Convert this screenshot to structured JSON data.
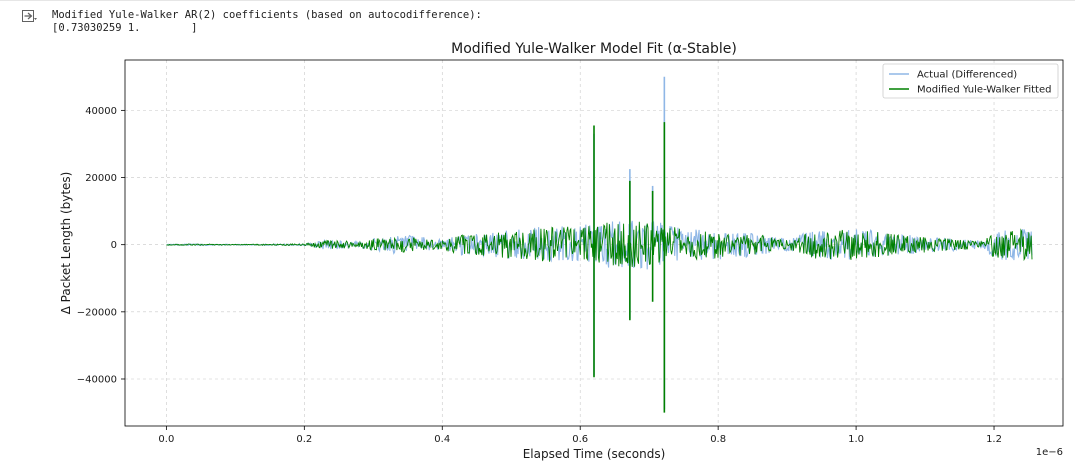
{
  "output": {
    "line1": "Modified Yule-Walker AR(2) coefficients (based on autocodifference):",
    "line2": "[0.73030259 1.        ]"
  },
  "chart_data": {
    "type": "line",
    "title": "Modified Yule-Walker Model Fit (α-Stable)",
    "xlabel": "Elapsed Time (seconds)",
    "ylabel": "Δ Packet Length (bytes)",
    "x_offset_label": "1e−6",
    "xlim": [
      -0.06,
      1.3
    ],
    "ylim": [
      -54000,
      55000
    ],
    "xticks": [
      0.0,
      0.2,
      0.4,
      0.6,
      0.8,
      1.0,
      1.2
    ],
    "xtick_labels": [
      "0.0",
      "0.2",
      "0.4",
      "0.6",
      "0.8",
      "1.0",
      "1.2"
    ],
    "yticks": [
      -40000,
      -20000,
      0,
      20000,
      40000
    ],
    "ytick_labels": [
      "−40000",
      "−20000",
      "0",
      "20000",
      "40000"
    ],
    "grid": true,
    "legend_position": "top-right",
    "series": [
      {
        "name": "Actual (Differenced)",
        "color": "#8fb7e6",
        "envelope": [
          {
            "x": 0.0,
            "amp": 150
          },
          {
            "x": 0.05,
            "amp": 250
          },
          {
            "x": 0.1,
            "amp": 100
          },
          {
            "x": 0.15,
            "amp": 200
          },
          {
            "x": 0.2,
            "amp": 300
          },
          {
            "x": 0.23,
            "amp": 1500
          },
          {
            "x": 0.26,
            "amp": 1200
          },
          {
            "x": 0.28,
            "amp": 800
          },
          {
            "x": 0.31,
            "amp": 2500
          },
          {
            "x": 0.35,
            "amp": 2800
          },
          {
            "x": 0.4,
            "amp": 1500
          },
          {
            "x": 0.42,
            "amp": 3000
          },
          {
            "x": 0.5,
            "amp": 4500
          },
          {
            "x": 0.55,
            "amp": 5500
          },
          {
            "x": 0.6,
            "amp": 6000
          },
          {
            "x": 0.65,
            "amp": 7500
          },
          {
            "x": 0.7,
            "amp": 7500
          },
          {
            "x": 0.75,
            "amp": 5000
          },
          {
            "x": 0.8,
            "amp": 4500
          },
          {
            "x": 0.85,
            "amp": 3500
          },
          {
            "x": 0.9,
            "amp": 1800
          },
          {
            "x": 0.94,
            "amp": 4500
          },
          {
            "x": 1.0,
            "amp": 5000
          },
          {
            "x": 1.05,
            "amp": 3500
          },
          {
            "x": 1.1,
            "amp": 2500
          },
          {
            "x": 1.18,
            "amp": 1200
          },
          {
            "x": 1.2,
            "amp": 4500
          },
          {
            "x": 1.255,
            "amp": 5000
          }
        ],
        "spikes": [
          {
            "x": 0.62,
            "y": 33000
          },
          {
            "x": 0.672,
            "y": 22500
          },
          {
            "x": 0.705,
            "y": 17500
          },
          {
            "x": 0.722,
            "y": 50000
          },
          {
            "x": 0.62,
            "y": -39000
          },
          {
            "x": 0.672,
            "y": -22000
          },
          {
            "x": 0.722,
            "y": -49000
          }
        ]
      },
      {
        "name": "Modified Yule-Walker Fitted",
        "color": "#008000",
        "envelope": [
          {
            "x": 0.0,
            "amp": 150
          },
          {
            "x": 0.05,
            "amp": 250
          },
          {
            "x": 0.1,
            "amp": 100
          },
          {
            "x": 0.15,
            "amp": 200
          },
          {
            "x": 0.2,
            "amp": 300
          },
          {
            "x": 0.23,
            "amp": 1500
          },
          {
            "x": 0.26,
            "amp": 1200
          },
          {
            "x": 0.28,
            "amp": 800
          },
          {
            "x": 0.31,
            "amp": 2500
          },
          {
            "x": 0.35,
            "amp": 2800
          },
          {
            "x": 0.4,
            "amp": 1500
          },
          {
            "x": 0.42,
            "amp": 3000
          },
          {
            "x": 0.5,
            "amp": 4500
          },
          {
            "x": 0.55,
            "amp": 5500
          },
          {
            "x": 0.6,
            "amp": 6000
          },
          {
            "x": 0.65,
            "amp": 7500
          },
          {
            "x": 0.7,
            "amp": 7500
          },
          {
            "x": 0.75,
            "amp": 5000
          },
          {
            "x": 0.8,
            "amp": 4500
          },
          {
            "x": 0.85,
            "amp": 3500
          },
          {
            "x": 0.9,
            "amp": 1800
          },
          {
            "x": 0.94,
            "amp": 4500
          },
          {
            "x": 1.0,
            "amp": 5000
          },
          {
            "x": 1.05,
            "amp": 3500
          },
          {
            "x": 1.1,
            "amp": 2500
          },
          {
            "x": 1.18,
            "amp": 1200
          },
          {
            "x": 1.2,
            "amp": 4500
          },
          {
            "x": 1.255,
            "amp": 5000
          }
        ],
        "spikes": [
          {
            "x": 0.62,
            "y": 35500
          },
          {
            "x": 0.672,
            "y": 19000
          },
          {
            "x": 0.705,
            "y": 16000
          },
          {
            "x": 0.722,
            "y": 36500
          },
          {
            "x": 0.62,
            "y": -39500
          },
          {
            "x": 0.672,
            "y": -22500
          },
          {
            "x": 0.705,
            "y": -17000
          },
          {
            "x": 0.722,
            "y": -50000
          }
        ]
      }
    ]
  }
}
